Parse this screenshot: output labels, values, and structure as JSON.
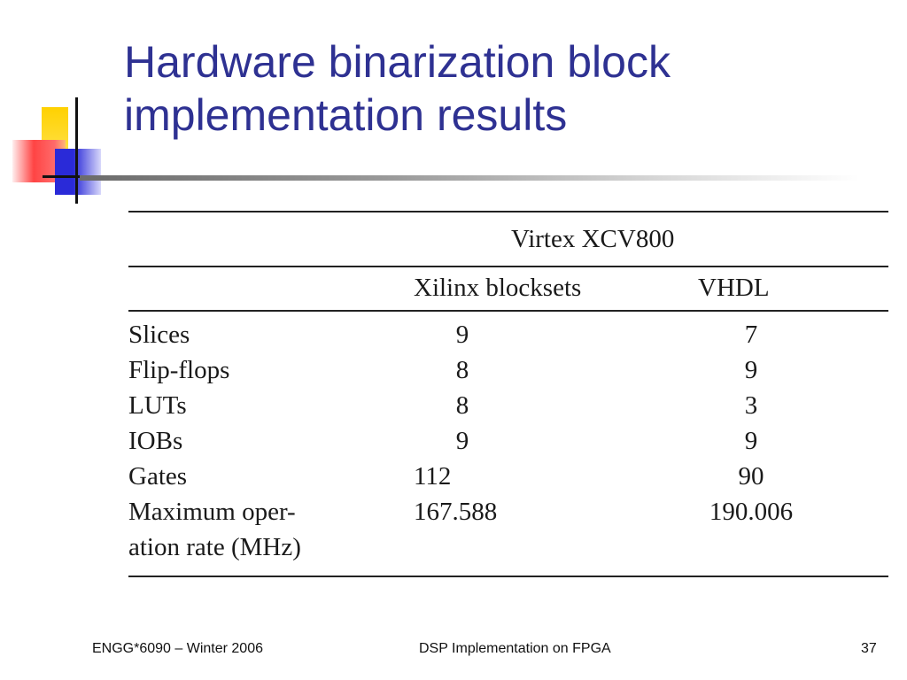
{
  "slide": {
    "title_line1": "Hardware binarization block",
    "title_line2": "implementation results"
  },
  "table": {
    "group_header": "Virtex XCV800",
    "columns": [
      "Xilinx blocksets",
      "VHDL"
    ],
    "rows": [
      {
        "label": "Slices",
        "xilinx": "9",
        "vhdl": "7"
      },
      {
        "label": "Flip-flops",
        "xilinx": "8",
        "vhdl": "9"
      },
      {
        "label": "LUTs",
        "xilinx": "8",
        "vhdl": "3"
      },
      {
        "label": "IOBs",
        "xilinx": "9",
        "vhdl": "9"
      },
      {
        "label": "Gates",
        "xilinx": "112",
        "vhdl": "90"
      },
      {
        "label": "Maximum oper-",
        "label_line2": "ation rate (MHz)",
        "xilinx": "167.588",
        "vhdl": "190.006"
      }
    ]
  },
  "footer": {
    "left": "ENGG*6090 – Winter 2006",
    "center": "DSP Implementation on FPGA",
    "page_number": "37"
  },
  "colors": {
    "title": "#2e3192",
    "logo_yellow": "#ffd100",
    "logo_red": "#ff4444",
    "logo_blue": "#2a2ad8"
  }
}
